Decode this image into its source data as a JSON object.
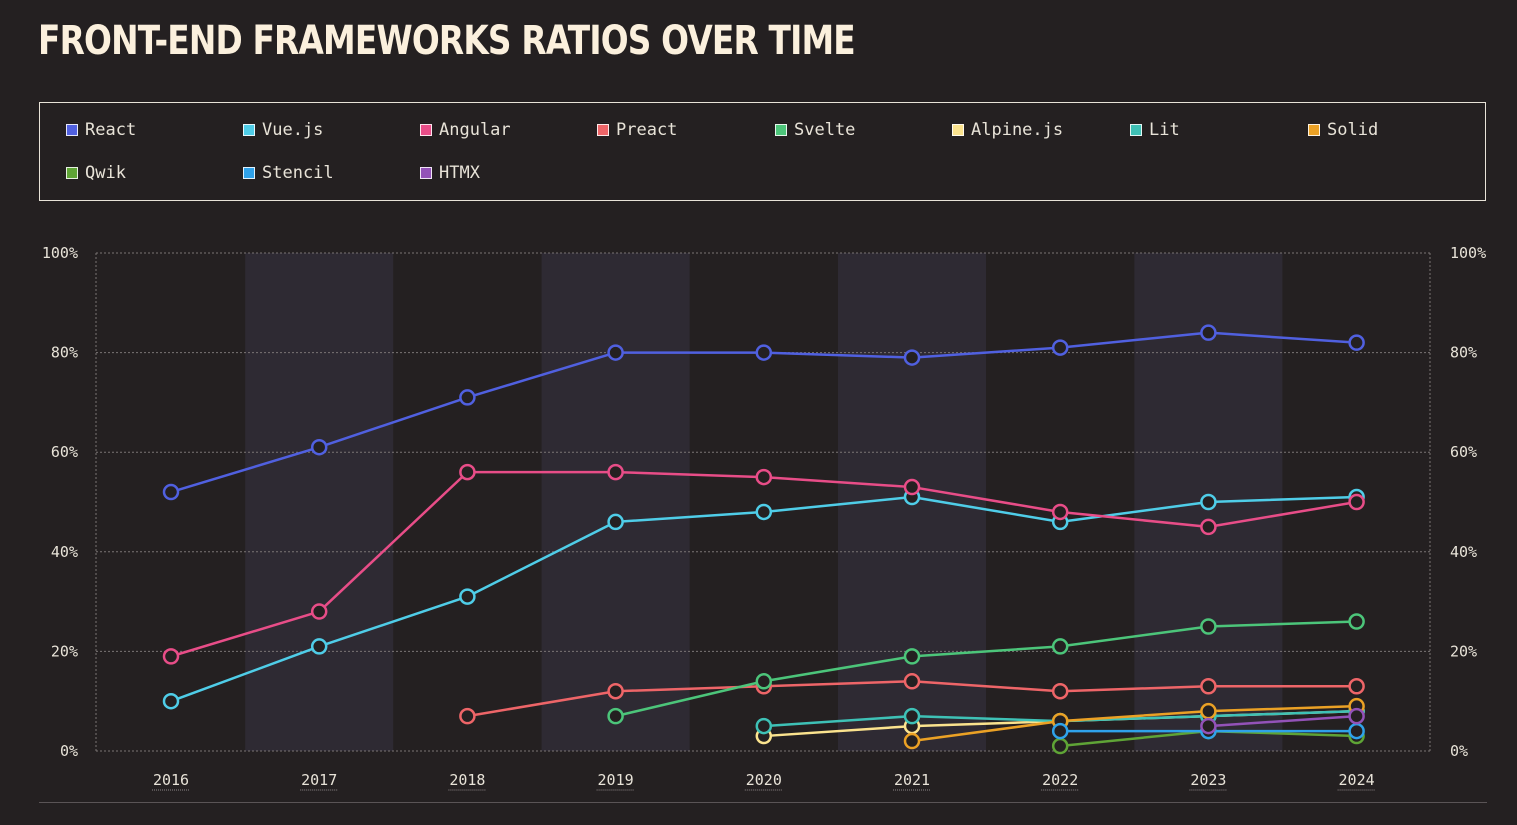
{
  "title": "FRONT-END FRAMEWORKS RATIOS OVER TIME",
  "chart_data": {
    "type": "line",
    "title": "FRONT-END FRAMEWORKS RATIOS OVER TIME",
    "x": [
      "2016",
      "2017",
      "2018",
      "2019",
      "2020",
      "2021",
      "2022",
      "2023",
      "2024"
    ],
    "ylim": [
      0,
      100
    ],
    "yticks": [
      "0%",
      "20%",
      "40%",
      "60%",
      "80%",
      "100%"
    ],
    "grid": true,
    "legend": "top",
    "alternating_year_bands": true,
    "series": [
      {
        "name": "React",
        "color": "#5060e0",
        "values": [
          52,
          61,
          71,
          80,
          80,
          79,
          81,
          84,
          82
        ]
      },
      {
        "name": "Vue.js",
        "color": "#4fcde8",
        "values": [
          10,
          21,
          31,
          46,
          48,
          51,
          46,
          50,
          51
        ]
      },
      {
        "name": "Angular",
        "color": "#e84d88",
        "values": [
          19,
          28,
          56,
          56,
          55,
          53,
          48,
          45,
          50
        ]
      },
      {
        "name": "Preact",
        "color": "#ee6568",
        "values": [
          null,
          null,
          7,
          12,
          13,
          14,
          12,
          13,
          13
        ]
      },
      {
        "name": "Svelte",
        "color": "#4cc57a",
        "values": [
          null,
          null,
          null,
          7,
          14,
          19,
          21,
          25,
          26
        ]
      },
      {
        "name": "Alpine.js",
        "color": "#fbe38e",
        "values": [
          null,
          null,
          null,
          null,
          3,
          5,
          6,
          7,
          8
        ]
      },
      {
        "name": "Lit",
        "color": "#3ec1b6",
        "values": [
          null,
          null,
          null,
          null,
          5,
          7,
          6,
          7,
          8
        ]
      },
      {
        "name": "Solid",
        "color": "#eba125",
        "values": [
          null,
          null,
          null,
          null,
          null,
          2,
          6,
          8,
          9
        ]
      },
      {
        "name": "Qwik",
        "color": "#5fa436",
        "values": [
          null,
          null,
          null,
          null,
          null,
          null,
          1,
          4,
          3
        ]
      },
      {
        "name": "Stencil",
        "color": "#2fa2ea",
        "values": [
          null,
          null,
          null,
          null,
          null,
          null,
          4,
          4,
          4
        ]
      },
      {
        "name": "HTMX",
        "color": "#9352b8",
        "values": [
          null,
          null,
          null,
          null,
          null,
          null,
          null,
          5,
          7
        ]
      }
    ]
  }
}
